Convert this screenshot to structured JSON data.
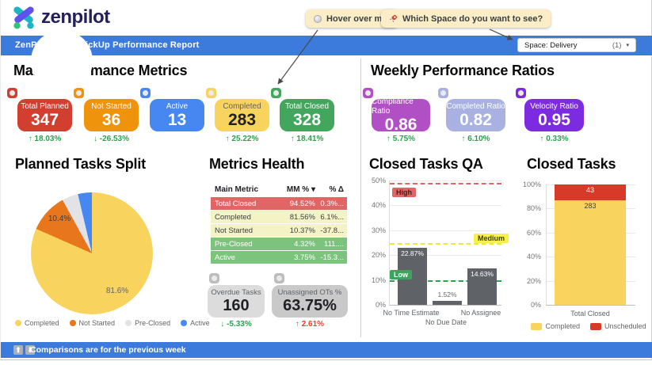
{
  "brand": {
    "name": "zenpilot"
  },
  "annotations": {
    "hover_note": {
      "icon": "gray-circle",
      "text": "Hover over me!"
    },
    "space_note": {
      "icon": "rocket",
      "text": "Which Space do you want to see?"
    }
  },
  "title_bar": {
    "title": "ZenPilot- 1.69 ClickUp Performance Report",
    "space_filter": {
      "label": "Space:",
      "value": "Delivery",
      "count": "(1)",
      "caret": "▾"
    }
  },
  "sections": {
    "main_metrics": "Main Performance Metrics",
    "weekly_ratios": "Weekly Performance Ratios",
    "planned_split": "Planned Tasks Split",
    "metrics_health": "Metrics Health",
    "closed_qa": "Closed Tasks QA",
    "closed_tasks": "Closed Tasks"
  },
  "scorecards": [
    {
      "label": "Total Planned",
      "value": "347",
      "delta": "↑ 18.03%",
      "delta_color": "#2d9e4e",
      "color": "#d23f31"
    },
    {
      "label": "Not Started",
      "value": "36",
      "delta": "↓ -26.53%",
      "delta_color": "#2d9e4e",
      "color": "#ef930c"
    },
    {
      "label": "Active",
      "value": "13",
      "delta": "",
      "delta_color": "",
      "color": "#4787f2"
    },
    {
      "label": "Completed",
      "value": "283",
      "delta": "↑ 25.22%",
      "delta_color": "#2d9e4e",
      "color": "#f8d45f"
    },
    {
      "label": "Total Closed",
      "value": "328",
      "delta": "↑ 18.41%",
      "delta_color": "#2d9e4e",
      "color": "#42a65c"
    }
  ],
  "ratio_cards": [
    {
      "label": "Compliance Ratio",
      "value": "0.86",
      "delta": "↑ 5.75%",
      "delta_color": "#2d9e4e",
      "color": "#b14fc5"
    },
    {
      "label": "Completed Ratio",
      "value": "0.82",
      "delta": "↑ 6.10%",
      "delta_color": "#2d9e4e",
      "color": "#a8b1e1"
    },
    {
      "label": "Velocity Ratio",
      "value": "0.95",
      "delta": "↑ 0.33%",
      "delta_color": "#2d9e4e",
      "color": "#7c2be0"
    }
  ],
  "gray_cards": [
    {
      "label": "Overdue Tasks",
      "value": "160",
      "delta": "↓ -5.33%",
      "delta_color": "#2d9e4e",
      "color": "#dcdcdc"
    },
    {
      "label": "Unassigned OTs %",
      "value": "63.75%",
      "delta": "↑ 2.61%",
      "delta_color": "#df4432",
      "color": "#c9c9c9"
    }
  ],
  "chart_data": [
    {
      "name": "planned_tasks_split",
      "type": "pie",
      "donut": true,
      "title": "Planned Tasks Split",
      "labels": [
        "Completed",
        "Not Started",
        "Pre-Closed",
        "Active"
      ],
      "values": [
        81.6,
        10.4,
        4.3,
        3.7
      ],
      "colors": [
        "#f8d45f",
        "#e8761d",
        "#e1e3e6",
        "#4787f2"
      ],
      "shown_labels": [
        "81.6%",
        "10.4%"
      ],
      "legend_position": "bottom"
    },
    {
      "name": "metrics_health",
      "type": "table",
      "title": "Metrics Health",
      "columns": [
        "Main Metric",
        "MM % ▾",
        "% Δ"
      ],
      "rows": [
        {
          "metric": "Total Closed",
          "mm": "94.52%",
          "delta": "0.3%...",
          "bg": "#e06666",
          "text": "#ffffff"
        },
        {
          "metric": "Completed",
          "mm": "81.56%",
          "delta": "6.1%...",
          "bg": "#f3f3c5",
          "text": "#3c4043"
        },
        {
          "metric": "Not Started",
          "mm": "10.37%",
          "delta": "-37.8...",
          "bg": "#f3f3c5",
          "text": "#3c4043"
        },
        {
          "metric": "Pre-Closed",
          "mm": "4.32%",
          "delta": "111....",
          "bg": "#7cc47e",
          "text": "#ffffff"
        },
        {
          "metric": "Active",
          "mm": "3.75%",
          "delta": "-15.3...",
          "bg": "#7cc47e",
          "text": "#ffffff"
        }
      ]
    },
    {
      "name": "closed_tasks_qa",
      "type": "bar",
      "title": "Closed Tasks QA",
      "categories": [
        "No Time Estimate",
        "No Due Date",
        "No Assignee"
      ],
      "values": [
        22.87,
        1.52,
        14.63
      ],
      "value_labels": [
        "22.87%",
        "1.52%",
        "14.63%"
      ],
      "bar_color": "#5f6368",
      "ylim": [
        0,
        50
      ],
      "yticks": [
        "0%",
        "10%",
        "20%",
        "30%",
        "40%",
        "50%"
      ],
      "grid": true,
      "reference_lines": [
        {
          "label": "High",
          "value": 50,
          "color": "#e06666"
        },
        {
          "label": "Medium",
          "value": 25,
          "color": "#efe73b"
        },
        {
          "label": "Low",
          "value": 10,
          "color": "#2f9e4e"
        }
      ]
    },
    {
      "name": "closed_tasks",
      "type": "bar",
      "stacked": true,
      "percent": true,
      "title": "Closed Tasks",
      "categories": [
        "Total Closed"
      ],
      "series": [
        {
          "name": "Completed",
          "values": [
            283
          ],
          "color": "#f8d45f"
        },
        {
          "name": "Unscheduled",
          "values": [
            43
          ],
          "color": "#d73a29"
        }
      ],
      "ylim": [
        0,
        100
      ],
      "yticks": [
        "0%",
        "20%",
        "40%",
        "60%",
        "80%",
        "100%"
      ],
      "grid": true,
      "legend_position": "bottom"
    }
  ],
  "footer": {
    "icons": [
      "⬆",
      "⬇"
    ],
    "text": "Comparisons are for the previous week"
  },
  "colors": {
    "bar_blue": "#3c7bdc",
    "delta_green": "#2d9e4e",
    "delta_red": "#df4432"
  }
}
